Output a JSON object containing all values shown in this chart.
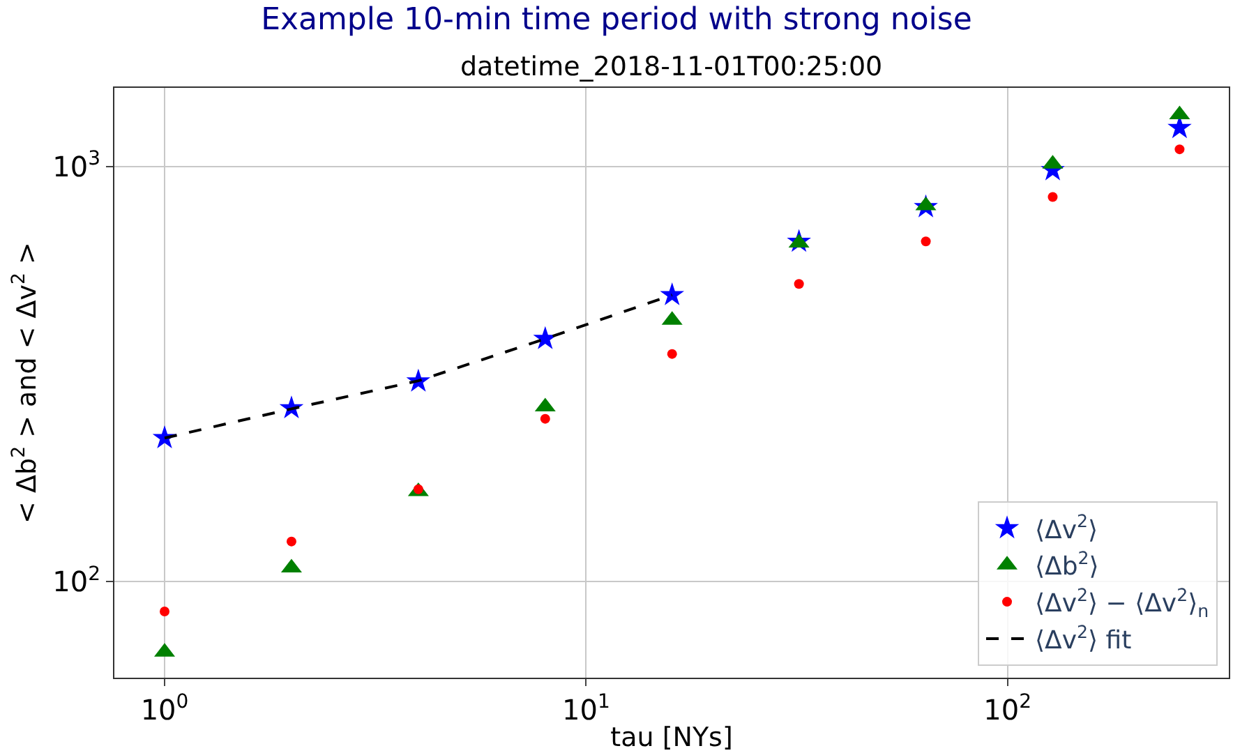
{
  "chart_data": {
    "type": "scatter",
    "title": "Example 10-min time period with strong noise",
    "subtitle": "datetime_2018-11-01T00:25:00",
    "xlabel": "tau [NYs]",
    "ylabel": "< Δb$^{2}$ > and < Δv$^{2}$ >",
    "x": [
      1,
      2,
      4,
      8,
      16,
      32,
      64,
      128,
      256
    ],
    "series": [
      {
        "name": "⟨Δv$^{2}$⟩",
        "color": "#0000ff",
        "marker": "star",
        "values": [
          222,
          262,
          304,
          385,
          491,
          660,
          800,
          982,
          1241
        ]
      },
      {
        "name": "⟨Δb$^{2}$⟩",
        "color": "#008000",
        "marker": "triangle",
        "values": [
          67.7,
          108,
          165,
          264,
          427,
          655,
          806,
          1016,
          1335
        ]
      },
      {
        "name": "⟨Δv$^{2}$⟩ − ⟨Δv$^{2}$⟩$_{n}$",
        "color": "#ff0000",
        "marker": "circle",
        "values": [
          84.8,
          125,
          167,
          247,
          354,
          522,
          661,
          846,
          1102
        ]
      },
      {
        "name": "⟨Δv$^{2}$⟩ fit",
        "color": "#000000",
        "type": "line",
        "line_style": "dashed",
        "marker": "none",
        "x": [
          1,
          2,
          4,
          8,
          16
        ],
        "values": [
          222,
          261,
          305,
          385,
          491
        ]
      }
    ],
    "log": "xy",
    "xlim": [
      0.76,
      335
    ],
    "ylim": [
      58.7,
      1550
    ],
    "xticks": [
      {
        "value": 1,
        "label": "10$^{0}$"
      },
      {
        "value": 10,
        "label": "10$^{1}$"
      },
      {
        "value": 100,
        "label": "10$^{2}$"
      }
    ],
    "yticks": [
      {
        "value": 100,
        "label": "10$^{2}$"
      },
      {
        "value": 1000,
        "label": "10$^{3}$"
      }
    ],
    "grid": true,
    "legend": "bottom right"
  }
}
